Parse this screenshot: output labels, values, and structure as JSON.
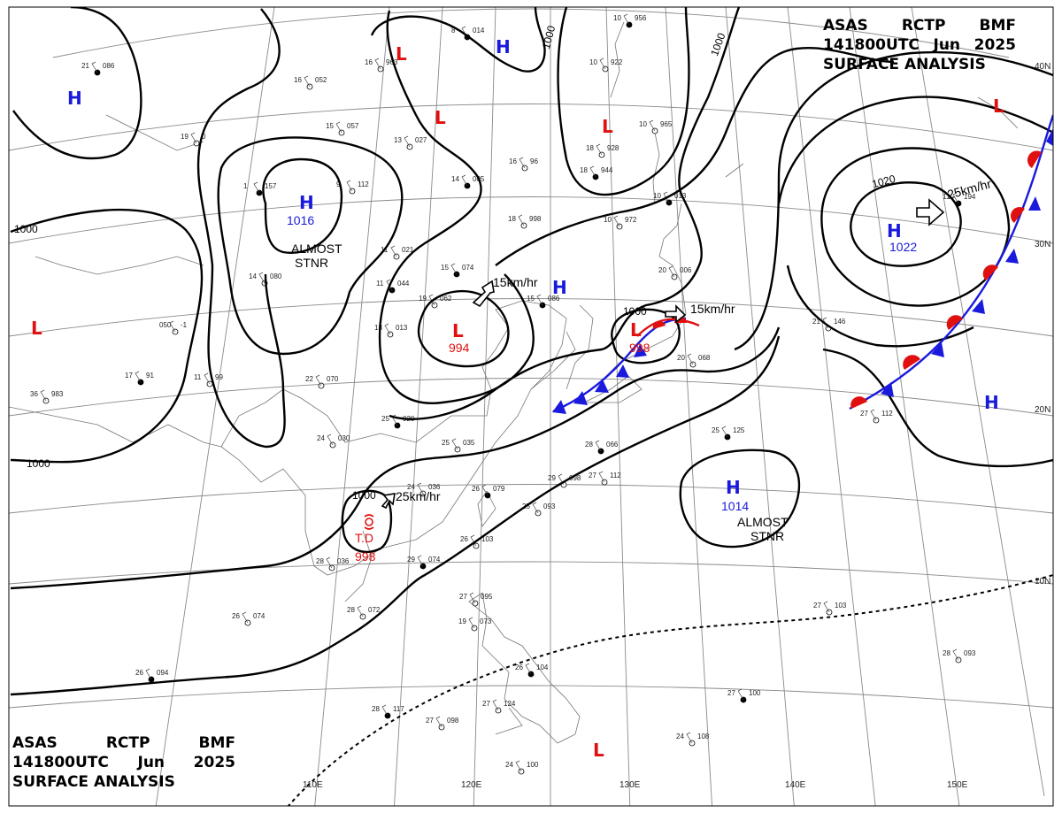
{
  "header": {
    "line1": [
      "ASAS",
      "RCTP",
      "BMF"
    ],
    "line2": [
      "141800UTC",
      "Jun",
      "2025"
    ],
    "line3": "SURFACE ANALYSIS"
  },
  "colors": {
    "high": "#1a1adc",
    "low": "#e01010",
    "front_cold": "#1a1adc",
    "front_warm": "#e01010",
    "isobar": "#000000"
  },
  "isobar_labels": {
    "a": "1000",
    "b": "1000",
    "c": "1000",
    "d": "1000",
    "e": "1000",
    "f": "1000",
    "g": "1020"
  },
  "pressure_centers": {
    "h_nw": "H",
    "h_north": "H",
    "h_1016": "H",
    "h_1016_value": "1016",
    "h_1016_note1": "ALMOST",
    "h_1016_note2": "STNR",
    "h_korea": "H",
    "h_1022": "H",
    "h_1022_value": "1022",
    "h_1014": "H",
    "h_1014_value": "1014",
    "h_1014_note1": "ALMOST",
    "h_1014_note2": "STNR",
    "h_east": "H",
    "l_west": "L",
    "l_north": "L",
    "l_mid": "L",
    "l_ne": "L",
    "l_994": "L",
    "l_994_value": "994",
    "l_998": "L",
    "l_998_value": "998",
    "l_far_ne": "L",
    "l_south": "L",
    "td_label": "T.D",
    "td_value": "998"
  },
  "motion_labels": {
    "m1": "15km/hr",
    "m2": "15km/hr",
    "m3": "25km/hr",
    "m4": "25km/hr"
  },
  "lat_labels": [
    "40N",
    "30N",
    "20N",
    "10N"
  ],
  "lon_labels": [
    "110E",
    "120E",
    "130E",
    "140E",
    "150E"
  ],
  "stations": [
    {
      "id": "s1",
      "t": "21",
      "p": "086"
    },
    {
      "id": "s2",
      "t": "16",
      "p": "052"
    },
    {
      "id": "s3",
      "t": "16",
      "p": "963"
    },
    {
      "id": "s4",
      "t": "8",
      "p": "014"
    },
    {
      "id": "s5",
      "t": "15",
      "p": "057"
    },
    {
      "id": "s6",
      "t": "19",
      "p": "0"
    },
    {
      "id": "s7",
      "t": "1",
      "p": "157"
    },
    {
      "id": "s8",
      "t": "9",
      "p": "112"
    },
    {
      "id": "s9",
      "t": "13",
      "p": "027"
    },
    {
      "id": "s10",
      "t": "14",
      "p": "005"
    },
    {
      "id": "s11",
      "t": "16",
      "p": "96"
    },
    {
      "id": "s12",
      "t": "18",
      "p": "928"
    },
    {
      "id": "s13",
      "t": "18",
      "p": "944"
    },
    {
      "id": "s14",
      "t": "10",
      "p": "972"
    },
    {
      "id": "s15",
      "t": "18",
      "p": "998"
    },
    {
      "id": "s16",
      "t": "15",
      "p": "074"
    },
    {
      "id": "s17",
      "t": "19",
      "p": "062"
    },
    {
      "id": "s18",
      "t": "18",
      "p": "013"
    },
    {
      "id": "s19",
      "t": "15",
      "p": "086"
    },
    {
      "id": "s20",
      "t": "14",
      "p": "080"
    },
    {
      "id": "s21",
      "t": "11",
      "p": "021"
    },
    {
      "id": "s22",
      "t": "11",
      "p": "044"
    },
    {
      "id": "s23",
      "t": "22",
      "p": "070"
    },
    {
      "id": "s24",
      "t": "11",
      "p": "99"
    },
    {
      "id": "s25",
      "t": "17",
      "p": "91"
    },
    {
      "id": "s26",
      "t": "36",
      "p": "983"
    },
    {
      "id": "s27",
      "t": "050",
      "p": "-1"
    },
    {
      "id": "s28",
      "t": "25",
      "p": "020"
    },
    {
      "id": "s29",
      "t": "24",
      "p": "030"
    },
    {
      "id": "s30",
      "t": "25",
      "p": "035"
    },
    {
      "id": "s31",
      "t": "28",
      "p": "066"
    },
    {
      "id": "s32",
      "t": "29",
      "p": "098"
    },
    {
      "id": "s33",
      "t": "27",
      "p": "112"
    },
    {
      "id": "s34",
      "t": "26",
      "p": "079"
    },
    {
      "id": "s35",
      "t": "25",
      "p": "093"
    },
    {
      "id": "s36",
      "t": "26",
      "p": "103"
    },
    {
      "id": "s37",
      "t": "29",
      "p": "074"
    },
    {
      "id": "s38",
      "t": "28",
      "p": "072"
    },
    {
      "id": "s39",
      "t": "26",
      "p": "074"
    },
    {
      "id": "s40",
      "t": "26",
      "p": "094"
    },
    {
      "id": "s41",
      "t": "27",
      "p": "095"
    },
    {
      "id": "s42",
      "t": "19",
      "p": "073"
    },
    {
      "id": "s43",
      "t": "28",
      "p": "117"
    },
    {
      "id": "s44",
      "t": "27",
      "p": "098"
    },
    {
      "id": "s45",
      "t": "27",
      "p": "124"
    },
    {
      "id": "s46",
      "t": "26",
      "p": "104"
    },
    {
      "id": "s47",
      "t": "24",
      "p": "100"
    },
    {
      "id": "s48",
      "t": "24",
      "p": "108"
    },
    {
      "id": "s49",
      "t": "27",
      "p": "100"
    },
    {
      "id": "s50",
      "t": "28",
      "p": "093"
    },
    {
      "id": "s51",
      "t": "27",
      "p": "103"
    },
    {
      "id": "s52",
      "t": "25",
      "p": "125"
    },
    {
      "id": "s53",
      "t": "27",
      "p": "112"
    },
    {
      "id": "s54",
      "t": "21",
      "p": "146"
    },
    {
      "id": "s55",
      "t": "11",
      "p": "194"
    },
    {
      "id": "s56",
      "t": "20",
      "p": "068"
    },
    {
      "id": "s57",
      "t": "20",
      "p": "006"
    },
    {
      "id": "s58",
      "t": "10",
      "p": "013"
    },
    {
      "id": "s59",
      "t": "10",
      "p": "965"
    },
    {
      "id": "s60",
      "t": "10",
      "p": "922"
    },
    {
      "id": "s61",
      "t": "10",
      "p": "956"
    },
    {
      "id": "s62",
      "t": "24",
      "p": "036"
    },
    {
      "id": "s63",
      "t": "28",
      "p": "036"
    }
  ]
}
